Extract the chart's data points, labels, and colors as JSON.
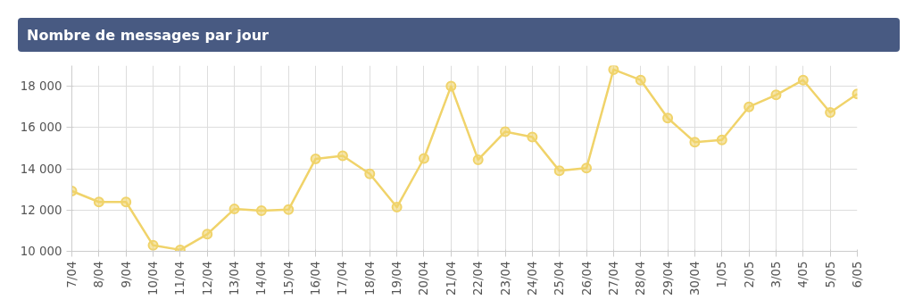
{
  "chart_data": {
    "type": "line",
    "title": "Nombre de messages par jour",
    "categories": [
      "7/04",
      "8/04",
      "9/04",
      "10/04",
      "11/04",
      "12/04",
      "13/04",
      "14/04",
      "15/04",
      "16/04",
      "17/04",
      "18/04",
      "19/04",
      "20/04",
      "21/04",
      "22/04",
      "23/04",
      "24/04",
      "25/04",
      "26/04",
      "27/04",
      "28/04",
      "29/04",
      "30/04",
      "1/05",
      "2/05",
      "3/05",
      "4/05",
      "5/05",
      "6/05"
    ],
    "series": [
      {
        "color": "#f0d36a",
        "values": [
          12920,
          12390,
          12390,
          10290,
          10070,
          10830,
          12050,
          11970,
          12020,
          14480,
          14630,
          13750,
          12140,
          14500,
          18000,
          14440,
          15800,
          15540,
          13900,
          14030,
          18810,
          18300,
          16460,
          15290,
          15400,
          17000,
          17580,
          18300,
          16730,
          17630
        ]
      }
    ],
    "ylim": [
      10000,
      19000
    ],
    "yticks": [
      {
        "value": 10000,
        "label": "10 000"
      },
      {
        "value": 12000,
        "label": "12 000"
      },
      {
        "value": 14000,
        "label": "14 000"
      },
      {
        "value": 16000,
        "label": "16 000"
      },
      {
        "value": 18000,
        "label": "18 000"
      }
    ],
    "grid": true,
    "marker": "circle",
    "line_style": "solid"
  }
}
